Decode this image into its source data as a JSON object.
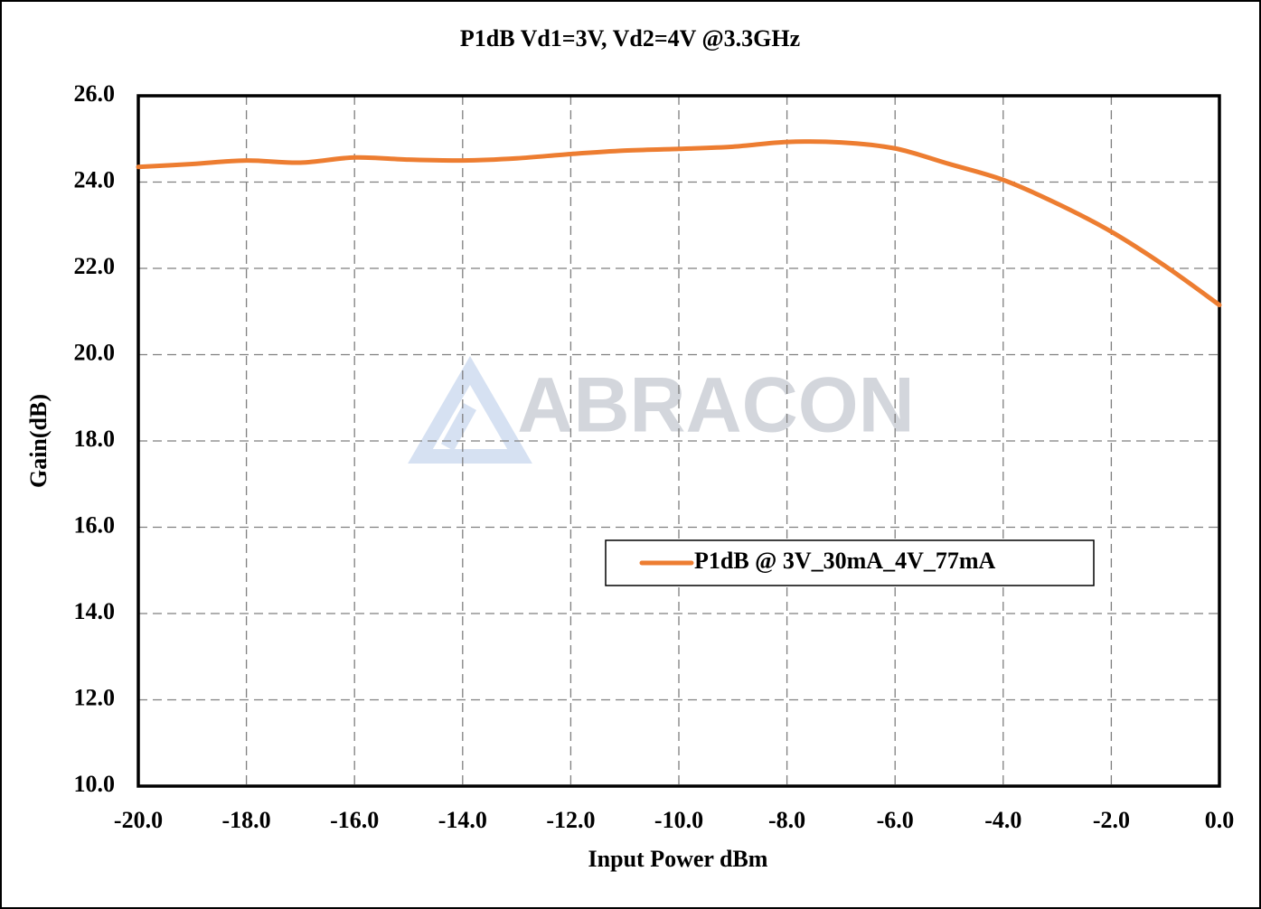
{
  "chart_data": {
    "type": "line",
    "title": "P1dB  Vd1=3V, Vd2=4V @3.3GHz",
    "x_label": "Input Power dBm",
    "y_label": "Gain(dB)",
    "watermark": "ABRACON",
    "x": [
      -20,
      -19,
      -18,
      -17,
      -16,
      -15,
      -14,
      -13,
      -12,
      -11,
      -10,
      -9,
      -8,
      -7,
      -6,
      -5,
      -4,
      -3,
      -2,
      -1,
      0
    ],
    "series": [
      {
        "name": "P1dB @ 3V_30mA_4V_77mA",
        "color": "#ed7d31",
        "values": [
          24.35,
          24.42,
          24.5,
          24.45,
          24.57,
          24.52,
          24.5,
          24.55,
          24.65,
          24.73,
          24.77,
          24.82,
          24.93,
          24.92,
          24.78,
          24.42,
          24.05,
          23.5,
          22.85,
          22.05,
          21.15
        ]
      }
    ],
    "xlim": [
      -20,
      0
    ],
    "xticks": [
      {
        "value": -20,
        "label": "-20.0"
      },
      {
        "value": -18,
        "label": "-18.0"
      },
      {
        "value": -16,
        "label": "-16.0"
      },
      {
        "value": -14,
        "label": "-14.0"
      },
      {
        "value": -12,
        "label": "-12.0"
      },
      {
        "value": -10,
        "label": "-10.0"
      },
      {
        "value": -8,
        "label": "-8.0"
      },
      {
        "value": -6,
        "label": "-6.0"
      },
      {
        "value": -4,
        "label": "-4.0"
      },
      {
        "value": -2,
        "label": "-2.0"
      },
      {
        "value": 0,
        "label": "0.0"
      }
    ],
    "ylim": [
      10,
      26
    ],
    "yticks": [
      {
        "value": 10,
        "label": "10.0"
      },
      {
        "value": 12,
        "label": "12.0"
      },
      {
        "value": 14,
        "label": "14.0"
      },
      {
        "value": 16,
        "label": "16.0"
      },
      {
        "value": 18,
        "label": "18.0"
      },
      {
        "value": 20,
        "label": "20.0"
      },
      {
        "value": 22,
        "label": "22.0"
      },
      {
        "value": 24,
        "label": "24.0"
      },
      {
        "value": 26,
        "label": "26.0"
      }
    ],
    "grid": true
  }
}
